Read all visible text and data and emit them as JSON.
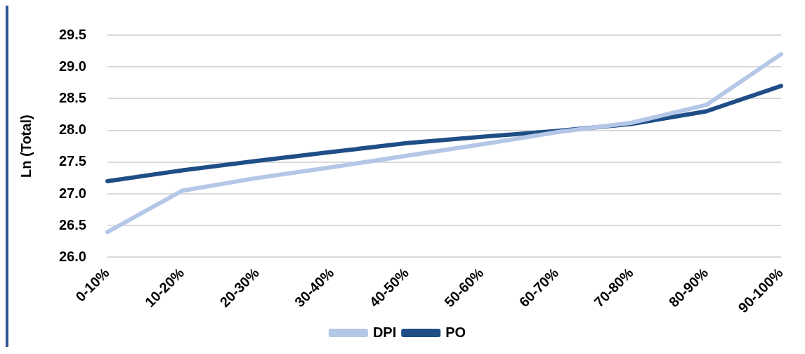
{
  "chart_data": {
    "type": "line",
    "ylabel": "Ln (Total)",
    "categories": [
      "0-10%",
      "10-20%",
      "20-30%",
      "30-40%",
      "40-50%",
      "50-60%",
      "60-70%",
      "70-80%",
      "80-90%",
      "90-100%"
    ],
    "series": [
      {
        "name": "DPI",
        "color": "#b4c7e7",
        "values": [
          26.4,
          27.05,
          27.25,
          27.42,
          27.6,
          27.78,
          27.97,
          28.12,
          28.4,
          29.2
        ]
      },
      {
        "name": "PO",
        "color": "#1f4e87",
        "values": [
          27.2,
          27.37,
          27.52,
          27.66,
          27.8,
          27.9,
          27.99,
          28.1,
          28.3,
          28.7
        ]
      }
    ],
    "ylim": [
      26,
      29.5
    ],
    "yticks": [
      {
        "value": 26,
        "label": "26.0"
      },
      26.5,
      {
        "value": 27,
        "label": "27.0"
      },
      27.5,
      {
        "value": 28,
        "label": "28.0"
      },
      28.5,
      {
        "value": 29,
        "label": "29.0"
      },
      29.5
    ],
    "grid": "y",
    "legend": "bottom",
    "marker": "none",
    "line_style": "solid"
  }
}
